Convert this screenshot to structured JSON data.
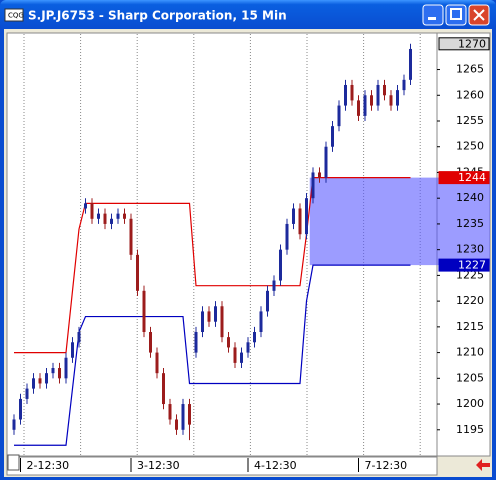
{
  "window": {
    "title": "S.JP.J6753 - Sharp Corporation, 15 Min"
  },
  "chart_data": {
    "type": "candlestick",
    "categories": [
      null,
      "2-12:30",
      null,
      null,
      null,
      null,
      null,
      null,
      null,
      null,
      null,
      null,
      null,
      null,
      null,
      null,
      null,
      null,
      "3-12:30",
      null,
      null,
      null,
      null,
      null,
      null,
      null,
      null,
      null,
      null,
      null,
      null,
      null,
      null,
      null,
      null,
      null,
      "4-12:30",
      null,
      null,
      null,
      null,
      null,
      null,
      null,
      null,
      null,
      null,
      null,
      null,
      null,
      null,
      null,
      null,
      "7-12:30",
      null,
      null,
      null,
      null,
      null,
      null,
      null,
      null
    ],
    "open": [
      1195,
      1197,
      1201,
      1203,
      1205,
      1204,
      1206,
      1207,
      1205,
      1209,
      1212,
      1238,
      1239,
      1236,
      1237,
      1235,
      1236,
      1237,
      1236,
      1229,
      1222,
      1214,
      1210,
      1206,
      1200,
      1197,
      1195,
      1200,
      1210,
      1214,
      1218,
      1216,
      1219,
      1213,
      1211,
      1208,
      1210,
      1212,
      1214,
      1218,
      1222,
      1224,
      1230,
      1235,
      1238,
      1233,
      1240,
      1245,
      1244,
      1250,
      1254,
      1258,
      1262,
      1259,
      1256,
      1260,
      1258,
      1262,
      1260,
      1258,
      1261,
      1263
    ],
    "high": [
      1198,
      1202,
      1204,
      1206,
      1206,
      1207,
      1208,
      1208,
      1210,
      1213,
      1215,
      1240,
      1240,
      1238,
      1238,
      1237,
      1238,
      1238,
      1237,
      1230,
      1223,
      1215,
      1211,
      1207,
      1201,
      1198,
      1201,
      1201,
      1215,
      1219,
      1219,
      1220,
      1220,
      1214,
      1212,
      1211,
      1213,
      1215,
      1219,
      1223,
      1225,
      1231,
      1236,
      1239,
      1239,
      1241,
      1246,
      1246,
      1251,
      1255,
      1259,
      1263,
      1263,
      1260,
      1261,
      1261,
      1263,
      1263,
      1261,
      1262,
      1264,
      1270
    ],
    "low": [
      1194,
      1196,
      1200,
      1202,
      1203,
      1203,
      1205,
      1204,
      1204,
      1208,
      1211,
      1237,
      1235,
      1235,
      1234,
      1234,
      1235,
      1235,
      1228,
      1221,
      1213,
      1209,
      1205,
      1199,
      1196,
      1194,
      1194,
      1193,
      1209,
      1213,
      1215,
      1215,
      1212,
      1210,
      1207,
      1207,
      1209,
      1211,
      1213,
      1217,
      1221,
      1223,
      1229,
      1234,
      1232,
      1232,
      1239,
      1243,
      1243,
      1249,
      1253,
      1257,
      1258,
      1255,
      1255,
      1257,
      1257,
      1259,
      1257,
      1257,
      1260,
      1262
    ],
    "close": [
      1197,
      1201,
      1203,
      1205,
      1204,
      1206,
      1207,
      1205,
      1209,
      1212,
      1214,
      1239,
      1236,
      1237,
      1235,
      1236,
      1237,
      1236,
      1229,
      1222,
      1214,
      1210,
      1206,
      1200,
      1197,
      1195,
      1200,
      1196,
      1214,
      1218,
      1216,
      1219,
      1213,
      1211,
      1208,
      1210,
      1212,
      1214,
      1218,
      1222,
      1224,
      1230,
      1235,
      1238,
      1233,
      1240,
      1245,
      1244,
      1250,
      1254,
      1258,
      1262,
      1259,
      1256,
      1260,
      1258,
      1262,
      1260,
      1258,
      1261,
      1263,
      1269
    ],
    "up_color": "#1c2a9c",
    "down_color": "#9c1c1c",
    "series": [
      {
        "color": "#e00000",
        "values": [
          1210,
          1210,
          1210,
          1210,
          1210,
          1210,
          1210,
          1210,
          1210,
          1222,
          1234,
          1239,
          1239,
          1239,
          1239,
          1239,
          1239,
          1239,
          1239,
          1239,
          1239,
          1239,
          1239,
          1239,
          1239,
          1239,
          1239,
          1239,
          1223,
          1223,
          1223,
          1223,
          1223,
          1223,
          1223,
          1223,
          1223,
          1223,
          1223,
          1223,
          1223,
          1223,
          1223,
          1223,
          1223,
          1233,
          1244,
          1244,
          1244,
          1244,
          1244,
          1244,
          1244,
          1244,
          1244,
          1244,
          1244,
          1244,
          1244,
          1244,
          1244,
          1244
        ]
      },
      {
        "color": "#0000c0",
        "values": [
          1192,
          1192,
          1192,
          1192,
          1192,
          1192,
          1192,
          1192,
          1192,
          1203,
          1214,
          1217,
          1217,
          1217,
          1217,
          1217,
          1217,
          1217,
          1217,
          1217,
          1217,
          1217,
          1217,
          1217,
          1217,
          1217,
          1217,
          1204,
          1204,
          1204,
          1204,
          1204,
          1204,
          1204,
          1204,
          1204,
          1204,
          1204,
          1204,
          1204,
          1204,
          1204,
          1204,
          1204,
          1204,
          1220,
          1227,
          1227,
          1227,
          1227,
          1227,
          1227,
          1227,
          1227,
          1227,
          1227,
          1227,
          1227,
          1227,
          1227,
          1227,
          1227
        ]
      }
    ],
    "zone": [
      1227,
      1244
    ],
    "zone_color": "rgba(90,90,255,0.6)",
    "markers": [
      {
        "value": 1270,
        "color": "#d8d8d8"
      },
      {
        "value": 1244,
        "color": "#e00000"
      },
      {
        "value": 1227,
        "color": "#0000c0"
      }
    ],
    "ylim": [
      1190.1,
      1272.1
    ],
    "yticks": [
      1195,
      1200,
      1205,
      1210,
      1215,
      1220,
      1225,
      1230,
      1235,
      1240,
      1245,
      1250,
      1255,
      1260,
      1265
    ],
    "grid": true
  }
}
